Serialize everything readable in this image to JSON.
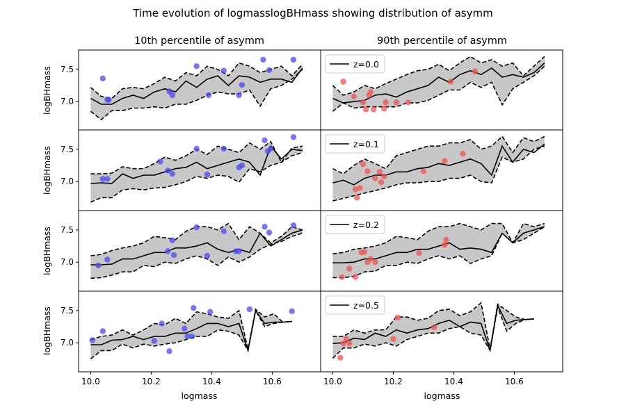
{
  "figure": {
    "title": "Time evolution of logmasslogBHmass showing distribution of asymm",
    "col_titles": [
      "10th percentile of asymm",
      "90th percentile of asymm"
    ],
    "xlabel": "logmass",
    "ylabel": "logBHmass"
  },
  "chart_data": {
    "type": "line",
    "xlim": [
      9.96,
      10.76
    ],
    "ylim": [
      6.55,
      7.8
    ],
    "xticks": [
      10.0,
      10.2,
      10.4,
      10.6
    ],
    "xtick_labels": [
      "10.0",
      "10.2",
      "10.4",
      "10.6"
    ],
    "yticks": [
      7.0,
      7.5
    ],
    "ytick_labels": [
      "7.0",
      "7.5"
    ],
    "legend_position": "top-left",
    "line_color": "#000000",
    "band_color": "#c8c8c8",
    "point_colors": {
      "left": "#4a4af2",
      "right": "#f05252"
    },
    "panels": [
      {
        "row": 0,
        "col": 0,
        "legend": "",
        "x": [
          10.0,
          10.035,
          10.07,
          10.105,
          10.14,
          10.175,
          10.21,
          10.245,
          10.28,
          10.315,
          10.35,
          10.385,
          10.42,
          10.455,
          10.49,
          10.525,
          10.56,
          10.595,
          10.63,
          10.665,
          10.7
        ],
        "median": [
          7.05,
          6.96,
          6.96,
          7.05,
          7.1,
          7.05,
          7.15,
          7.2,
          7.15,
          7.32,
          7.22,
          7.35,
          7.4,
          7.25,
          7.4,
          7.38,
          7.3,
          7.35,
          7.35,
          7.3,
          7.52
        ],
        "upper": [
          7.22,
          7.08,
          7.05,
          7.2,
          7.22,
          7.2,
          7.28,
          7.38,
          7.32,
          7.45,
          7.4,
          7.55,
          7.5,
          7.4,
          7.6,
          7.55,
          7.45,
          7.5,
          7.55,
          7.4,
          7.58
        ],
        "lower": [
          6.85,
          6.72,
          6.86,
          6.86,
          6.9,
          6.9,
          6.92,
          6.9,
          6.96,
          6.96,
          7.02,
          7.1,
          7.15,
          7.12,
          7.12,
          7.18,
          6.93,
          7.2,
          7.25,
          7.35,
          7.5
        ],
        "points": [
          [
            10.04,
            7.36
          ],
          [
            10.055,
            7.03
          ],
          [
            10.06,
            7.03
          ],
          [
            10.26,
            7.16
          ],
          [
            10.27,
            7.1
          ],
          [
            10.35,
            7.55
          ],
          [
            10.39,
            7.1
          ],
          [
            10.44,
            7.48
          ],
          [
            10.49,
            7.1
          ],
          [
            10.5,
            7.26
          ],
          [
            10.57,
            7.65
          ],
          [
            10.59,
            7.49
          ],
          [
            10.67,
            7.65
          ]
        ]
      },
      {
        "row": 0,
        "col": 1,
        "legend": "z=0.0",
        "x": [
          10.0,
          10.035,
          10.07,
          10.105,
          10.14,
          10.175,
          10.21,
          10.245,
          10.28,
          10.315,
          10.35,
          10.385,
          10.42,
          10.455,
          10.49,
          10.525,
          10.56,
          10.595,
          10.63,
          10.665,
          10.7
        ],
        "median": [
          7.05,
          6.98,
          7.0,
          7.02,
          7.1,
          7.12,
          7.07,
          7.15,
          7.2,
          7.25,
          7.38,
          7.3,
          7.42,
          7.48,
          7.42,
          7.52,
          7.38,
          7.42,
          7.38,
          7.45,
          7.6
        ],
        "upper": [
          7.25,
          7.1,
          7.15,
          7.25,
          7.2,
          7.28,
          7.35,
          7.42,
          7.48,
          7.5,
          7.58,
          7.48,
          7.6,
          7.7,
          7.6,
          7.65,
          7.55,
          7.6,
          7.4,
          7.55,
          7.7
        ],
        "lower": [
          6.85,
          6.98,
          6.9,
          6.92,
          6.92,
          6.92,
          6.92,
          6.98,
          6.98,
          7.02,
          7.1,
          7.18,
          7.18,
          7.3,
          7.22,
          7.3,
          6.95,
          7.2,
          7.3,
          7.4,
          7.55
        ],
        "points": [
          [
            10.035,
            7.31
          ],
          [
            10.07,
            7.08
          ],
          [
            10.1,
            6.99
          ],
          [
            10.11,
            6.88
          ],
          [
            10.12,
            7.1
          ],
          [
            10.125,
            7.15
          ],
          [
            10.135,
            6.88
          ],
          [
            10.17,
            6.89
          ],
          [
            10.175,
            6.99
          ],
          [
            10.21,
            6.99
          ],
          [
            10.25,
            6.99
          ],
          [
            10.39,
            7.31
          ],
          [
            10.47,
            7.47
          ]
        ]
      },
      {
        "row": 1,
        "col": 0,
        "legend": "",
        "x": [
          10.0,
          10.035,
          10.07,
          10.105,
          10.14,
          10.175,
          10.21,
          10.245,
          10.28,
          10.315,
          10.35,
          10.385,
          10.42,
          10.455,
          10.49,
          10.525,
          10.56,
          10.595,
          10.63,
          10.665,
          10.7
        ],
        "median": [
          6.97,
          6.98,
          6.97,
          7.12,
          7.05,
          7.1,
          7.1,
          7.15,
          7.2,
          7.22,
          7.3,
          7.2,
          7.25,
          7.3,
          7.35,
          7.3,
          7.1,
          7.55,
          7.35,
          7.5,
          7.48
        ],
        "upper": [
          7.12,
          7.12,
          7.13,
          7.23,
          7.2,
          7.2,
          7.28,
          7.38,
          7.33,
          7.4,
          7.5,
          7.42,
          7.55,
          7.5,
          7.45,
          7.6,
          7.5,
          7.62,
          7.3,
          7.52,
          7.55
        ],
        "lower": [
          6.68,
          6.75,
          6.75,
          6.87,
          6.89,
          6.87,
          6.9,
          6.91,
          6.95,
          7.0,
          7.08,
          7.05,
          7.1,
          7.08,
          6.99,
          7.2,
          7.15,
          7.25,
          7.3,
          7.4,
          7.45
        ],
        "points": [
          [
            10.04,
            7.04
          ],
          [
            10.055,
            7.04
          ],
          [
            10.23,
            7.31
          ],
          [
            10.255,
            7.17
          ],
          [
            10.27,
            7.12
          ],
          [
            10.35,
            7.51
          ],
          [
            10.385,
            7.11
          ],
          [
            10.44,
            7.51
          ],
          [
            10.49,
            7.22
          ],
          [
            10.5,
            7.25
          ],
          [
            10.575,
            7.64
          ],
          [
            10.585,
            7.47
          ],
          [
            10.595,
            7.51
          ],
          [
            10.67,
            7.69
          ]
        ]
      },
      {
        "row": 1,
        "col": 1,
        "legend": "z=0.1",
        "x": [
          10.0,
          10.035,
          10.07,
          10.105,
          10.14,
          10.175,
          10.21,
          10.245,
          10.28,
          10.315,
          10.35,
          10.385,
          10.42,
          10.455,
          10.49,
          10.525,
          10.56,
          10.595,
          10.63,
          10.665,
          10.7
        ],
        "median": [
          6.98,
          7.02,
          6.95,
          7.05,
          7.1,
          7.1,
          7.15,
          7.15,
          7.2,
          7.22,
          7.28,
          7.25,
          7.3,
          7.35,
          7.28,
          7.1,
          7.55,
          7.3,
          7.5,
          7.45,
          7.58
        ],
        "upper": [
          7.2,
          7.12,
          7.25,
          7.35,
          7.28,
          7.2,
          7.4,
          7.45,
          7.5,
          7.55,
          7.55,
          7.6,
          7.6,
          7.65,
          7.5,
          7.55,
          7.7,
          7.45,
          7.68,
          7.62,
          7.7
        ],
        "lower": [
          6.7,
          6.74,
          6.78,
          6.82,
          6.86,
          6.9,
          6.95,
          6.98,
          6.98,
          7.0,
          7.0,
          7.05,
          7.05,
          7.1,
          7.0,
          6.98,
          7.38,
          7.3,
          7.35,
          7.5,
          7.55
        ],
        "points": [
          [
            10.075,
            6.88
          ],
          [
            10.08,
            6.75
          ],
          [
            10.09,
            6.9
          ],
          [
            10.1,
            7.27
          ],
          [
            10.115,
            7.16
          ],
          [
            10.14,
            7.05
          ],
          [
            10.155,
            7.15
          ],
          [
            10.16,
            6.99
          ],
          [
            10.17,
            7.08
          ],
          [
            10.3,
            7.16
          ],
          [
            10.37,
            7.32
          ],
          [
            10.43,
            7.43
          ]
        ]
      },
      {
        "row": 2,
        "col": 0,
        "legend": "",
        "x": [
          10.0,
          10.035,
          10.07,
          10.105,
          10.14,
          10.175,
          10.21,
          10.245,
          10.28,
          10.315,
          10.35,
          10.385,
          10.42,
          10.455,
          10.49,
          10.525,
          10.56,
          10.595,
          10.63,
          10.665,
          10.7
        ],
        "median": [
          6.96,
          6.96,
          6.97,
          7.05,
          7.05,
          7.1,
          7.15,
          7.15,
          7.22,
          7.22,
          7.25,
          7.3,
          7.2,
          7.15,
          7.2,
          7.15,
          7.45,
          7.25,
          7.35,
          7.45,
          7.5
        ],
        "upper": [
          7.1,
          7.12,
          7.18,
          7.22,
          7.25,
          7.3,
          7.4,
          7.38,
          7.35,
          7.48,
          7.55,
          7.55,
          7.5,
          7.6,
          7.35,
          7.55,
          7.45,
          7.3,
          7.4,
          7.55,
          7.5
        ],
        "lower": [
          6.75,
          6.76,
          6.8,
          6.85,
          6.85,
          6.95,
          6.93,
          7.0,
          6.98,
          7.05,
          7.1,
          7.05,
          6.95,
          7.08,
          7.0,
          7.08,
          7.2,
          7.28,
          7.32,
          7.4,
          7.45
        ],
        "points": [
          [
            10.025,
            6.95
          ],
          [
            10.055,
            7.04
          ],
          [
            10.255,
            7.17
          ],
          [
            10.27,
            7.34
          ],
          [
            10.275,
            7.11
          ],
          [
            10.35,
            7.54
          ],
          [
            10.385,
            7.1
          ],
          [
            10.44,
            7.48
          ],
          [
            10.48,
            7.17
          ],
          [
            10.49,
            7.17
          ],
          [
            10.575,
            7.55
          ],
          [
            10.59,
            7.46
          ],
          [
            10.67,
            7.57
          ]
        ]
      },
      {
        "row": 2,
        "col": 1,
        "legend": "z=0.2",
        "x": [
          10.0,
          10.035,
          10.07,
          10.105,
          10.14,
          10.175,
          10.21,
          10.245,
          10.28,
          10.315,
          10.35,
          10.385,
          10.42,
          10.455,
          10.49,
          10.525,
          10.56,
          10.595,
          10.63,
          10.665,
          10.7
        ],
        "median": [
          6.99,
          6.99,
          7.0,
          7.05,
          7.05,
          7.1,
          7.15,
          7.15,
          7.2,
          7.2,
          7.25,
          7.3,
          7.2,
          7.22,
          7.2,
          7.15,
          7.45,
          7.3,
          7.45,
          7.5,
          7.55
        ],
        "upper": [
          7.13,
          7.15,
          7.2,
          7.22,
          7.25,
          7.3,
          7.4,
          7.38,
          7.35,
          7.48,
          7.55,
          7.55,
          7.6,
          7.55,
          7.5,
          7.6,
          7.6,
          7.3,
          7.6,
          7.55,
          7.6
        ],
        "lower": [
          6.76,
          6.76,
          6.78,
          6.85,
          6.86,
          6.95,
          6.95,
          7.0,
          6.98,
          7.05,
          7.1,
          7.05,
          7.1,
          6.98,
          7.05,
          7.1,
          7.45,
          7.3,
          7.35,
          7.45,
          7.55
        ],
        "points": [
          [
            10.03,
            6.77
          ],
          [
            10.055,
            6.9
          ],
          [
            10.075,
            6.77
          ],
          [
            10.095,
            7.15
          ],
          [
            10.105,
            7.16
          ],
          [
            10.115,
            7.0
          ],
          [
            10.125,
            7.05
          ],
          [
            10.14,
            7.0
          ],
          [
            10.285,
            7.14
          ],
          [
            10.37,
            7.27
          ],
          [
            10.375,
            7.35
          ]
        ]
      },
      {
        "row": 3,
        "col": 0,
        "legend": "",
        "x": [
          10.0,
          10.035,
          10.07,
          10.105,
          10.14,
          10.175,
          10.21,
          10.245,
          10.28,
          10.315,
          10.35,
          10.385,
          10.42,
          10.455,
          10.49,
          10.52,
          10.545,
          10.575,
          10.605,
          10.635,
          10.665
        ],
        "median": [
          6.97,
          6.97,
          7.04,
          7.05,
          7.1,
          7.05,
          7.1,
          7.1,
          7.15,
          7.15,
          7.22,
          7.3,
          7.3,
          7.25,
          7.3,
          6.88,
          7.5,
          7.3,
          7.32,
          7.32,
          7.33
        ],
        "upper": [
          7.05,
          7.1,
          7.12,
          7.2,
          7.12,
          7.2,
          7.3,
          7.28,
          7.38,
          7.3,
          7.48,
          7.45,
          7.4,
          7.38,
          7.5,
          6.9,
          7.52,
          7.4,
          7.45,
          7.32,
          7.33
        ],
        "lower": [
          6.75,
          6.88,
          6.88,
          6.98,
          6.92,
          6.98,
          6.95,
          6.98,
          7.0,
          7.05,
          7.1,
          7.1,
          7.2,
          7.18,
          7.12,
          6.88,
          7.5,
          7.25,
          7.3,
          7.32,
          7.33
        ],
        "points": [
          [
            10.005,
            7.04
          ],
          [
            10.04,
            7.18
          ],
          [
            10.21,
            7.03
          ],
          [
            10.235,
            7.3
          ],
          [
            10.26,
            6.87
          ],
          [
            10.31,
            7.22
          ],
          [
            10.32,
            7.1
          ],
          [
            10.335,
            7.1
          ],
          [
            10.34,
            7.54
          ],
          [
            10.395,
            7.48
          ],
          [
            10.525,
            7.52
          ],
          [
            10.665,
            7.49
          ]
        ]
      },
      {
        "row": 3,
        "col": 1,
        "legend": "z=0.5",
        "x": [
          10.0,
          10.035,
          10.07,
          10.105,
          10.14,
          10.175,
          10.21,
          10.245,
          10.28,
          10.315,
          10.35,
          10.385,
          10.42,
          10.455,
          10.49,
          10.52,
          10.545,
          10.575,
          10.605,
          10.635,
          10.665
        ],
        "median": [
          6.99,
          7.0,
          7.07,
          7.05,
          7.15,
          7.1,
          7.2,
          7.15,
          7.2,
          7.22,
          7.3,
          7.35,
          7.25,
          7.32,
          7.3,
          6.88,
          7.58,
          7.3,
          7.35,
          7.36,
          7.37
        ],
        "upper": [
          7.1,
          7.1,
          7.2,
          7.15,
          7.2,
          7.2,
          7.4,
          7.4,
          7.35,
          7.38,
          7.5,
          7.52,
          7.42,
          7.48,
          7.62,
          6.9,
          7.6,
          7.5,
          7.4,
          7.36,
          7.37
        ],
        "lower": [
          6.76,
          6.92,
          6.92,
          6.98,
          6.95,
          7.0,
          6.95,
          7.05,
          7.1,
          7.15,
          7.15,
          7.22,
          7.25,
          7.15,
          7.12,
          6.88,
          7.55,
          7.18,
          7.3,
          7.36,
          7.37
        ],
        "points": [
          [
            10.025,
            6.77
          ],
          [
            10.035,
            6.99
          ],
          [
            10.045,
            7.06
          ],
          [
            10.055,
            6.99
          ],
          [
            10.2,
            7.06
          ],
          [
            10.215,
            7.39
          ],
          [
            10.335,
            7.24
          ]
        ]
      }
    ]
  }
}
